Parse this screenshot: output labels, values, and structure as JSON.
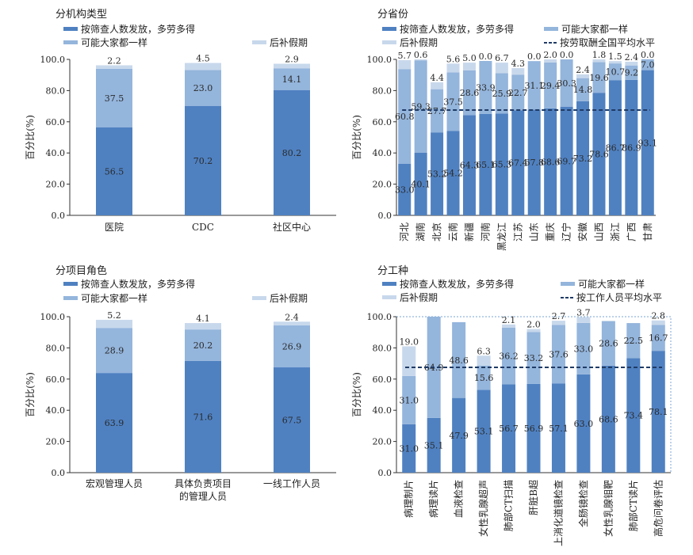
{
  "colors": {
    "primary": "#4f81c1",
    "secondary": "#94b5dc",
    "tertiary": "#c8d8ec",
    "avg_line": "#1f3b66"
  },
  "chart_data": [
    {
      "type": "bar",
      "stacked": true,
      "title": "分机构类型",
      "ylabel": "百分比(%)",
      "ylim": [
        0,
        100
      ],
      "yticks": [
        "0.0",
        "20.0",
        "40.0",
        "60.0",
        "80.0",
        "100.0"
      ],
      "categories": [
        "医院",
        "CDC",
        "社区中心"
      ],
      "series": [
        {
          "name": "按筛查人数发放，多劳多得",
          "values": [
            56.5,
            70.2,
            80.2
          ]
        },
        {
          "name": "可能大家都一样",
          "values": [
            37.5,
            23.0,
            14.1
          ]
        },
        {
          "name": "后补假期",
          "values": [
            2.2,
            4.5,
            2.9
          ]
        }
      ],
      "legend": "top"
    },
    {
      "type": "bar",
      "stacked": true,
      "title": "分省份",
      "ylabel": "百分比(%)",
      "ylim": [
        0,
        100
      ],
      "yticks": [
        "0.0",
        "20.0",
        "40.0",
        "60.0",
        "80.0",
        "100.0"
      ],
      "categories": [
        "河北",
        "湖南",
        "北京",
        "云南",
        "新疆",
        "河南",
        "黑龙江",
        "江苏",
        "山东",
        "重庆",
        "辽宁",
        "安徽",
        "山西",
        "浙江",
        "广西",
        "甘肃"
      ],
      "series": [
        {
          "name": "按筛查人数发放，多劳多得",
          "values": [
            33.0,
            40.1,
            53.2,
            54.2,
            64.3,
            65.1,
            65.3,
            67.4,
            67.8,
            68.6,
            69.7,
            73.2,
            78.6,
            86.7,
            86.9,
            93.1
          ]
        },
        {
          "name": "可能大家都一样",
          "values": [
            60.8,
            59.3,
            27.7,
            37.5,
            28.6,
            33.9,
            25.9,
            22.7,
            31.1,
            29.4,
            30.3,
            14.8,
            19.6,
            10.7,
            9.2,
            7.0
          ]
        },
        {
          "name": "后补假期",
          "values": [
            5.7,
            0.6,
            4.4,
            5.6,
            5.0,
            0.0,
            6.7,
            4.3,
            0.0,
            2.0,
            0.0,
            2.4,
            1.8,
            1.5,
            2.4,
            0.0
          ]
        }
      ],
      "reference_line": {
        "name": "按劳取酬全国平均水平",
        "value": 67.5
      },
      "legend": "top"
    },
    {
      "type": "bar",
      "stacked": true,
      "title": "分项目角色",
      "ylabel": "百分比(%)",
      "ylim": [
        0,
        100
      ],
      "yticks": [
        "0.0",
        "20.0",
        "40.0",
        "60.0",
        "80.0",
        "100.0"
      ],
      "categories": [
        "宏观管理人员",
        "具体负责项目\n的管理人员",
        "一线工作人员"
      ],
      "series": [
        {
          "name": "按筛查人数发放，多劳多得",
          "values": [
            63.9,
            71.6,
            67.5
          ]
        },
        {
          "name": "可能大家都一样",
          "values": [
            28.9,
            20.2,
            26.9
          ]
        },
        {
          "name": "后补假期",
          "values": [
            5.2,
            4.1,
            2.4
          ]
        }
      ],
      "legend": "top"
    },
    {
      "type": "bar",
      "stacked": true,
      "title": "分工种",
      "ylabel": "百分比(%)",
      "ylim": [
        0,
        100
      ],
      "yticks": [
        "0.0",
        "20.0",
        "40.0",
        "60.0",
        "80.0",
        "100.0"
      ],
      "categories": [
        "病理制片",
        "病理读片",
        "血液检查",
        "女性乳腺超声",
        "肺部CT扫描",
        "肝脏B超",
        "上消化道镜检查",
        "全肠镜检查",
        "女性乳腺钼靶",
        "肺部CT读片",
        "高危问卷评估"
      ],
      "series": [
        {
          "name": "按筛查人数发放，多劳多得",
          "values": [
            31.0,
            35.1,
            47.9,
            53.1,
            56.7,
            56.9,
            57.1,
            63.0,
            68.6,
            73.4,
            78.1
          ]
        },
        {
          "name": "可能大家都一样",
          "values": [
            31.0,
            64.9,
            48.6,
            15.6,
            36.2,
            33.2,
            37.6,
            33.0,
            28.6,
            22.5,
            16.7
          ]
        },
        {
          "name": "后补假期",
          "values": [
            19.0,
            null,
            null,
            6.3,
            2.1,
            2.0,
            2.7,
            3.7,
            null,
            null,
            2.8
          ]
        }
      ],
      "reference_line": {
        "name": "按工作人员平均水平",
        "value": 67.5
      },
      "legend": "top"
    }
  ]
}
